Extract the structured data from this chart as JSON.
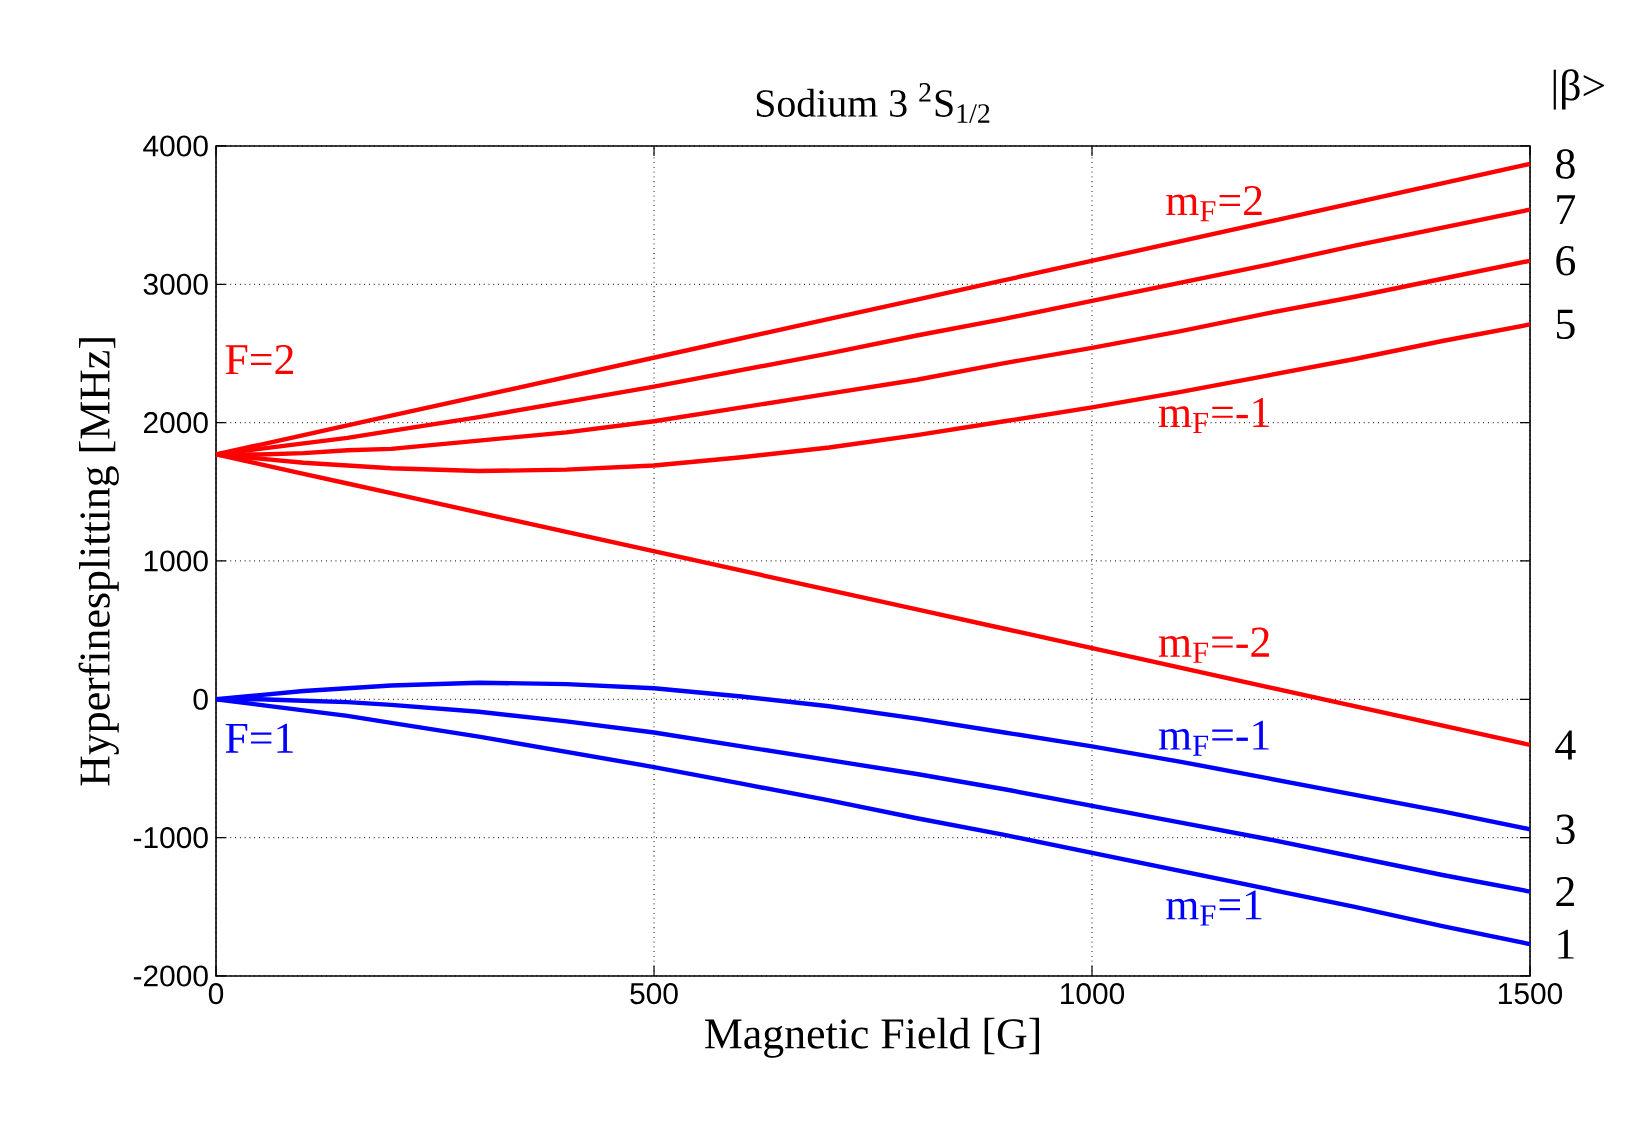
{
  "chart_data": {
    "type": "line",
    "title": "Sodium 3 $^{2}$S$_{1/2}$",
    "xlabel": "Magnetic Field [G]",
    "ylabel": "Hyperfinesplitting [MHz]",
    "x": [
      0,
      50,
      100,
      150,
      200,
      300,
      400,
      500,
      600,
      700,
      800,
      900,
      1000,
      1100,
      1200,
      1300,
      1400,
      1500
    ],
    "series": [
      {
        "name": "m$_{F}$=2",
        "color": "#ff0000",
        "values": [
          1770,
          1840,
          1910,
          1980,
          2050,
          2190,
          2330,
          2470,
          2610,
          2750,
          2890,
          3030,
          3170,
          3310,
          3450,
          3590,
          3730,
          3870
        ]
      },
      {
        "color": "#ff0000",
        "values": [
          1770,
          1810,
          1850,
          1890,
          1940,
          2040,
          2150,
          2260,
          2380,
          2500,
          2630,
          2750,
          2880,
          3010,
          3140,
          3280,
          3410,
          3540
        ]
      },
      {
        "color": "#ff0000",
        "values": [
          1770,
          1770,
          1780,
          1800,
          1810,
          1870,
          1930,
          2010,
          2110,
          2210,
          2310,
          2430,
          2540,
          2660,
          2790,
          2910,
          3040,
          3170
        ]
      },
      {
        "name": "m$_{F}$=-1",
        "color": "#ff0000",
        "values": [
          1770,
          1740,
          1710,
          1690,
          1670,
          1650,
          1660,
          1690,
          1750,
          1820,
          1910,
          2010,
          2110,
          2220,
          2340,
          2460,
          2590,
          2710
        ]
      },
      {
        "name": "m$_{F}$=-2",
        "color": "#ff0000",
        "values": [
          1770,
          1700,
          1630,
          1560,
          1490,
          1350,
          1210,
          1070,
          930,
          790,
          650,
          510,
          370,
          230,
          90,
          -50,
          -190,
          -330
        ]
      },
      {
        "name": "m$_{F}$=-1",
        "color": "#0000ff",
        "values": [
          0,
          30,
          60,
          80,
          100,
          120,
          110,
          80,
          20,
          -50,
          -140,
          -240,
          -340,
          -450,
          -570,
          -690,
          -810,
          -940
        ]
      },
      {
        "color": "#0000ff",
        "values": [
          0,
          0,
          -10,
          -20,
          -40,
          -90,
          -160,
          -240,
          -340,
          -440,
          -540,
          -650,
          -770,
          -890,
          -1010,
          -1140,
          -1270,
          -1390
        ]
      },
      {
        "name": "m$_{F}$=1",
        "color": "#0000ff",
        "values": [
          0,
          -40,
          -80,
          -120,
          -170,
          -270,
          -380,
          -490,
          -610,
          -730,
          -860,
          -980,
          -1110,
          -1240,
          -1370,
          -1500,
          -1640,
          -1770
        ]
      }
    ],
    "xlim": [
      0,
      1500
    ],
    "ylim": [
      -2000,
      4000
    ],
    "xticks": [
      0,
      500,
      1000,
      1500
    ],
    "yticks": [
      -2000,
      -1000,
      0,
      1000,
      2000,
      3000,
      4000
    ],
    "grid": true,
    "legend": false,
    "marker": "none",
    "line_style": "solid",
    "annotations": [
      "F=2",
      "F=1",
      "|β>",
      "1",
      "2",
      "3",
      "4",
      "5",
      "6",
      "7",
      "8"
    ]
  }
}
